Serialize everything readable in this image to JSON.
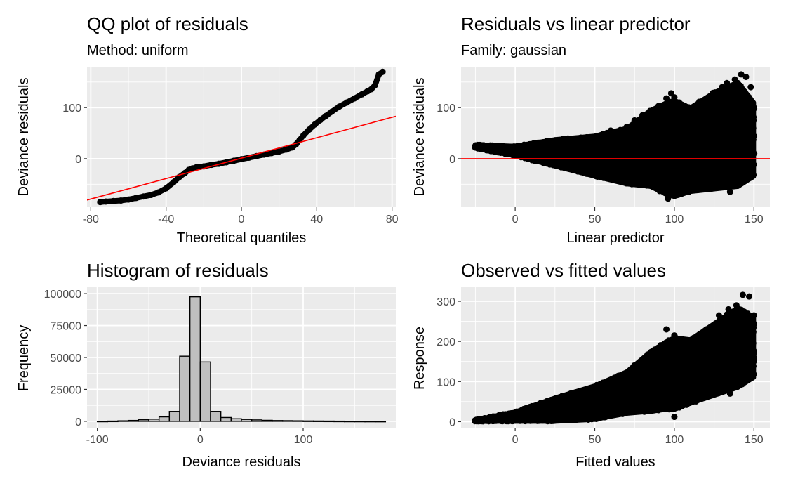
{
  "chart_data": [
    {
      "type": "scatter",
      "title": "QQ plot of residuals",
      "subtitle": "Method: uniform",
      "xlabel": "Theoretical quantiles",
      "ylabel": "Deviance residuals",
      "xlim": [
        -82,
        82
      ],
      "ylim": [
        -95,
        180
      ],
      "xticks": [
        -80,
        -40,
        0,
        40,
        80
      ],
      "yticks": [
        0,
        100
      ],
      "grid": true,
      "series": [
        {
          "kind": "points",
          "color": "#000000",
          "x": [
            -75,
            -72,
            -68,
            -64,
            -60,
            -56,
            -52,
            -48,
            -44,
            -40,
            -36,
            -33,
            -30,
            -28,
            -26,
            -24,
            -22,
            -20,
            -16,
            -12,
            -8,
            -4,
            0,
            4,
            8,
            12,
            16,
            20,
            24,
            27,
            29,
            31,
            33,
            36,
            39,
            42,
            45,
            48,
            52,
            56,
            60,
            64,
            67,
            69,
            71,
            73,
            75
          ],
          "y": [
            -85,
            -84,
            -83,
            -82,
            -80,
            -77,
            -74,
            -71,
            -66,
            -58,
            -46,
            -36,
            -28,
            -22,
            -19,
            -17,
            -16,
            -15,
            -12,
            -10,
            -7,
            -4,
            -1,
            2,
            5,
            8,
            11,
            14,
            18,
            22,
            28,
            37,
            46,
            57,
            67,
            76,
            84,
            92,
            102,
            110,
            118,
            126,
            132,
            136,
            144,
            165,
            170
          ]
        },
        {
          "kind": "reference-line",
          "color": "#ff0000",
          "x": [
            -82,
            82
          ],
          "y": [
            -81,
            83
          ]
        }
      ]
    },
    {
      "type": "scatter",
      "title": "Residuals vs linear predictor",
      "subtitle": "Family: gaussian",
      "xlabel": "Linear predictor",
      "ylabel": "Deviance residuals",
      "xlim": [
        -34,
        160
      ],
      "ylim": [
        -95,
        180
      ],
      "xticks": [
        0,
        50,
        100,
        150
      ],
      "yticks": [
        0,
        100
      ],
      "grid": true,
      "series": [
        {
          "kind": "band",
          "color": "#000000",
          "x": [
            -25,
            0,
            25,
            50,
            70,
            85,
            95,
            100,
            110,
            125,
            140,
            150
          ],
          "ymin": [
            20,
            5,
            -15,
            -35,
            -50,
            -55,
            -70,
            -75,
            -65,
            -60,
            -55,
            -35
          ],
          "ymax": [
            28,
            25,
            38,
            45,
            60,
            95,
            110,
            115,
            100,
            130,
            150,
            110
          ]
        },
        {
          "kind": "points",
          "color": "#000000",
          "x": [
            -25,
            -20,
            -10,
            0,
            10,
            20,
            30,
            38,
            45,
            55,
            60,
            70,
            75,
            80,
            85,
            90,
            95,
            98,
            100,
            103,
            108,
            112,
            117,
            122,
            125,
            130,
            133,
            138,
            142,
            145,
            148,
            150,
            135,
            128,
            118,
            96,
            140
          ],
          "y": [
            25,
            26,
            22,
            18,
            25,
            30,
            35,
            38,
            42,
            48,
            55,
            62,
            75,
            85,
            90,
            103,
            118,
            128,
            120,
            110,
            95,
            88,
            100,
            108,
            115,
            140,
            148,
            155,
            165,
            160,
            140,
            100,
            -65,
            -55,
            -58,
            -78,
            -45
          ]
        },
        {
          "kind": "reference-line",
          "color": "#ff0000",
          "x": [
            -34,
            160
          ],
          "y": [
            0,
            0
          ]
        }
      ]
    },
    {
      "type": "bar",
      "title": "Histogram of residuals",
      "xlabel": "Deviance residuals",
      "ylabel": "Frequency",
      "xlim": [
        -110,
        190
      ],
      "ylim": [
        -5000,
        105000
      ],
      "xticks": [
        -100,
        0,
        100
      ],
      "yticks": [
        0,
        25000,
        50000,
        75000,
        100000
      ],
      "grid": true,
      "bin_width": 10,
      "fill": "#bfbfbf",
      "bin_centers": [
        -95,
        -85,
        -75,
        -65,
        -55,
        -45,
        -35,
        -25,
        -15,
        -5,
        5,
        15,
        25,
        35,
        45,
        55,
        65,
        75,
        85,
        95,
        105,
        115,
        125,
        135,
        145,
        155,
        165,
        175
      ],
      "values": [
        100,
        200,
        400,
        700,
        1200,
        1700,
        3500,
        7800,
        51000,
        97500,
        46500,
        7800,
        3000,
        2000,
        1500,
        1100,
        800,
        600,
        500,
        400,
        300,
        250,
        200,
        150,
        100,
        80,
        50,
        30
      ]
    },
    {
      "type": "scatter",
      "title": "Observed vs fitted values",
      "xlabel": "Fitted values",
      "ylabel": "Response",
      "xlim": [
        -34,
        160
      ],
      "ylim": [
        -15,
        335
      ],
      "xticks": [
        0,
        50,
        100,
        150
      ],
      "yticks": [
        0,
        100,
        200,
        300
      ],
      "grid": true,
      "series": [
        {
          "kind": "band",
          "color": "#000000",
          "x": [
            -25,
            0,
            25,
            50,
            70,
            85,
            95,
            100,
            110,
            125,
            140,
            150
          ],
          "ymin": [
            0,
            0,
            0,
            5,
            20,
            25,
            30,
            30,
            45,
            65,
            85,
            110
          ],
          "ymax": [
            5,
            25,
            60,
            90,
            125,
            175,
            200,
            210,
            205,
            245,
            285,
            260
          ]
        },
        {
          "kind": "points",
          "color": "#000000",
          "x": [
            -25,
            -15,
            0,
            15,
            30,
            45,
            55,
            65,
            75,
            85,
            95,
            100,
            105,
            112,
            120,
            128,
            134,
            139,
            143,
            147,
            150,
            135,
            125,
            100,
            150
          ],
          "y": [
            2,
            3,
            8,
            25,
            45,
            70,
            95,
            110,
            130,
            170,
            230,
            215,
            205,
            195,
            230,
            265,
            280,
            290,
            316,
            312,
            265,
            70,
            160,
            12,
            160
          ]
        }
      ]
    }
  ]
}
